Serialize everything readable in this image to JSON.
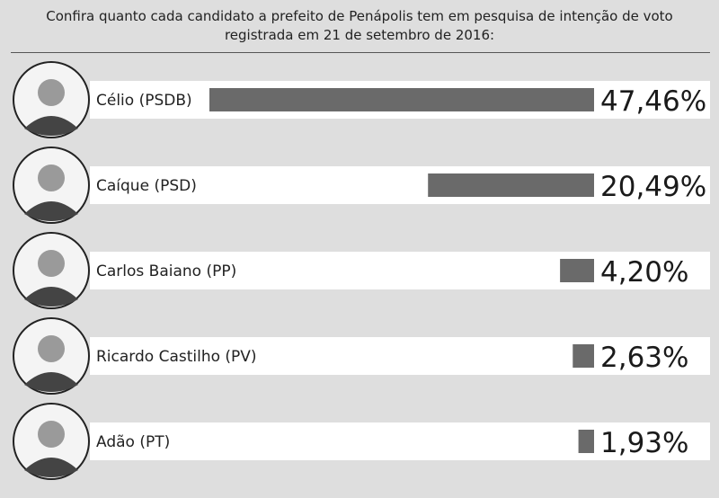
{
  "chart_data": {
    "type": "bar",
    "orientation": "horizontal",
    "title": "Confira quanto cada candidato a prefeito de Penápolis tem em pesquisa de intenção de voto registrada em 21 de setembro de 2016:",
    "categories": [
      "Célio (PSDB)",
      "Caíque (PSD)",
      "Carlos Baiano (PP)",
      "Ricardo Castilho (PV)",
      "Adão (PT)"
    ],
    "values": [
      47.46,
      20.49,
      4.2,
      2.63,
      1.93
    ],
    "value_labels": [
      "47,46%",
      "20,49%",
      "4,20%",
      "2,63%",
      "1,93%"
    ],
    "color": "#6a6a6a"
  }
}
